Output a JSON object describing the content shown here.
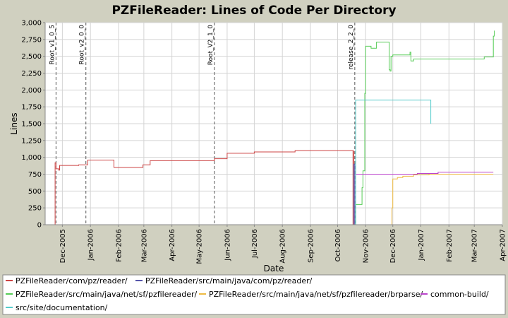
{
  "chart_data": {
    "type": "line",
    "title": "PZFileReader: Lines of Code Per Directory",
    "xlabel": "Date",
    "ylabel": "Lines",
    "xlim": [
      "2005-11-12",
      "2007-04-01"
    ],
    "ylim": [
      0,
      3000
    ],
    "y_ticks": [
      0,
      250,
      500,
      750,
      1000,
      1250,
      1500,
      1750,
      2000,
      2250,
      2500,
      2750,
      3000
    ],
    "y_tick_labels": [
      "0",
      "250",
      "500",
      "750",
      "1,000",
      "1,250",
      "1,500",
      "1,750",
      "2,000",
      "2,250",
      "2,500",
      "2,750",
      "3,000"
    ],
    "x_ticks": [
      "2005-12-01",
      "2006-01-01",
      "2006-02-01",
      "2006-03-01",
      "2006-04-01",
      "2006-05-01",
      "2006-06-01",
      "2006-07-01",
      "2006-08-01",
      "2006-09-01",
      "2006-10-01",
      "2006-11-01",
      "2006-12-01",
      "2007-01-01",
      "2007-02-01",
      "2007-03-01",
      "2007-04-01"
    ],
    "x_tick_labels": [
      "Dec-2005",
      "Jan-2006",
      "Feb-2006",
      "Mar-2006",
      "Apr-2006",
      "May-2006",
      "Jun-2006",
      "Jul-2006",
      "Aug-2006",
      "Sep-2006",
      "Oct-2006",
      "Nov-2006",
      "Dec-2006",
      "Jan-2007",
      "Feb-2007",
      "Mar-2007",
      "Apr-2007"
    ],
    "grid": true,
    "legend_position": "bottom",
    "markers": [
      {
        "label": "Root_v1_0_5",
        "x": "2005-11-24"
      },
      {
        "label": "Root_v2_0_0",
        "x": "2005-12-27"
      },
      {
        "label": "Root_V2_1_0",
        "x": "2006-05-18"
      },
      {
        "label": "release_2_2_0",
        "x": "2006-10-20"
      }
    ],
    "series": [
      {
        "name": "PZFileReader/com/pz/reader/",
        "color": "#cc4444",
        "x": [
          "2005-11-23",
          "2005-11-23",
          "2005-11-24",
          "2005-11-24",
          "2005-11-27",
          "2005-11-27",
          "2005-11-28",
          "2005-11-28",
          "2005-12-19",
          "2005-12-19",
          "2005-12-29",
          "2005-12-29",
          "2006-01-27",
          "2006-01-27",
          "2006-02-28",
          "2006-02-28",
          "2006-03-08",
          "2006-03-08",
          "2006-05-18",
          "2006-05-18",
          "2006-06-01",
          "2006-06-01",
          "2006-07-01",
          "2006-07-01",
          "2006-08-15",
          "2006-08-15",
          "2006-10-18",
          "2006-10-18",
          "2006-10-19",
          "2006-10-19"
        ],
        "y": [
          0,
          920,
          920,
          830,
          830,
          810,
          810,
          880,
          880,
          890,
          890,
          960,
          960,
          850,
          850,
          890,
          890,
          950,
          950,
          980,
          980,
          1060,
          1060,
          1080,
          1080,
          1100,
          1100,
          0,
          0,
          1100
        ]
      },
      {
        "name": "PZFileReader/src/main/java/com/pz/reader/",
        "color": "#5555aa",
        "x": [
          "2006-10-19",
          "2006-10-19",
          "2006-10-20",
          "2006-10-20"
        ],
        "y": [
          0,
          900,
          900,
          0
        ]
      },
      {
        "name": "PZFileReader/src/main/java/net/sf/pzfilereader/",
        "color": "#55cc55",
        "x": [
          "2006-10-21",
          "2006-10-21",
          "2006-10-28",
          "2006-10-28",
          "2006-10-29",
          "2006-10-29",
          "2006-10-31",
          "2006-10-31",
          "2006-11-01",
          "2006-11-01",
          "2006-11-07",
          "2006-11-07",
          "2006-11-13",
          "2006-11-13",
          "2006-11-27",
          "2006-11-27",
          "2006-11-28",
          "2006-11-28",
          "2006-11-29",
          "2006-11-29",
          "2006-12-01",
          "2006-12-01",
          "2006-12-20",
          "2006-12-20",
          "2006-12-21",
          "2006-12-21",
          "2006-12-24",
          "2006-12-24",
          "2007-03-12",
          "2007-03-12",
          "2007-03-22",
          "2007-03-22",
          "2007-03-23",
          "2007-03-23"
        ],
        "y": [
          0,
          300,
          300,
          550,
          550,
          800,
          800,
          1950,
          1950,
          2650,
          2650,
          2620,
          2620,
          2710,
          2710,
          2300,
          2300,
          2280,
          2280,
          2500,
          2500,
          2520,
          2520,
          2560,
          2560,
          2430,
          2430,
          2460,
          2460,
          2490,
          2490,
          2800,
          2800,
          2880
        ]
      },
      {
        "name": "PZFileReader/src/main/java/net/sf/pzfilereader/brparse/",
        "color": "#eebb44",
        "x": [
          "2006-11-30",
          "2006-11-30",
          "2006-12-01",
          "2006-12-01",
          "2006-12-06",
          "2006-12-06",
          "2006-12-12",
          "2006-12-12",
          "2006-12-24",
          "2006-12-24",
          "2007-01-10",
          "2007-01-10",
          "2007-03-22"
        ],
        "y": [
          0,
          250,
          250,
          680,
          680,
          700,
          700,
          720,
          720,
          740,
          740,
          750,
          750
        ]
      },
      {
        "name": "common-build/",
        "color": "#bb44cc",
        "x": [
          "2006-10-21",
          "2006-12-28",
          "2006-12-28",
          "2007-01-20",
          "2007-01-20",
          "2007-03-22"
        ],
        "y": [
          750,
          750,
          760,
          760,
          780,
          780
        ]
      },
      {
        "name": "src/site/documentation/",
        "color": "#55cccc",
        "x": [
          "2006-10-21",
          "2006-10-21",
          "2007-01-12",
          "2007-01-12"
        ],
        "y": [
          0,
          1850,
          1850,
          1500
        ]
      }
    ]
  }
}
